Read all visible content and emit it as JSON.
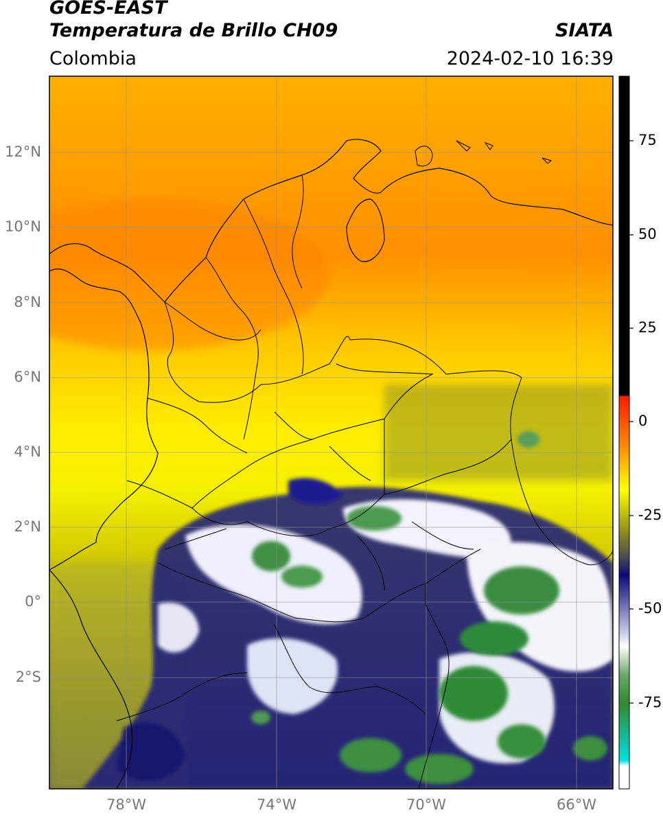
{
  "header": {
    "satellite": "GOES-EAST",
    "product": "Temperatura de Brillo CH09",
    "region": "Colombia",
    "agency": "SIATA",
    "timestamp": "2024-02-10 16:39"
  },
  "map": {
    "extent": {
      "lon_min": -80,
      "lon_max": -65,
      "lat_min": -5,
      "lat_max": 14
    },
    "grid": true,
    "lat_labels": [
      "12°N",
      "10°N",
      "8°N",
      "6°N",
      "4°N",
      "2°N",
      "0°",
      "2°S"
    ],
    "lon_labels": [
      "78°W",
      "74°W",
      "70°W",
      "66°W"
    ]
  },
  "colorbar": {
    "range": [
      -95,
      90
    ],
    "ticks": [
      "75",
      "50",
      "25",
      "0",
      "-25",
      "-50",
      "-75"
    ],
    "colors": {
      "hot": "#000000",
      "red": "#ff1a00",
      "orange": "#ff8c00",
      "yellow": "#ffff00",
      "olive": "#8c8c1e",
      "navy": "#0a0a78",
      "white": "#ffffff",
      "green": "#2e8b2e",
      "cyan": "#00e0e0"
    }
  }
}
